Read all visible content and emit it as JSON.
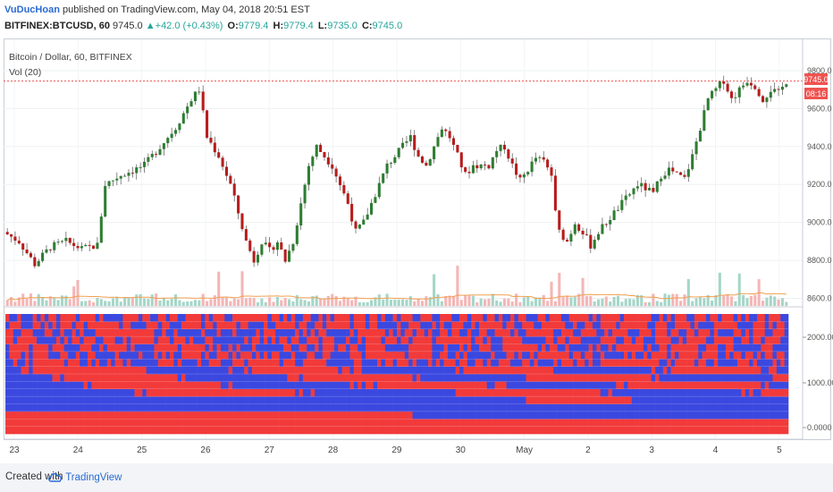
{
  "header": {
    "author": "VuDucHoan",
    "published": "published on TradingView.com, May 04, 2018 20:51 EST",
    "symbol": "BITFINEX:BTCUSD, 60",
    "last": "9745.0",
    "arrow": "▲",
    "change": "+42.0 (+0.43%)",
    "o_label": "O:",
    "o": "9779.4",
    "h_label": "H:",
    "h": "9779.4",
    "l_label": "L:",
    "l": "9735.0",
    "c_label": "C:",
    "c": "9745.0"
  },
  "legend": {
    "title": "Bitcoin / Dollar, 60, BITFINEX",
    "volume": "Vol (20)"
  },
  "price_tags": {
    "last": "9745.0",
    "countdown": "08:16"
  },
  "colors": {
    "up": "#26a69a",
    "down": "#ef5350",
    "candle_up": "#2e7d32",
    "candle_down": "#b71c1c",
    "red_band": "#f23a3a",
    "blue_band": "#3b48e0",
    "accent": "#2b6ad3"
  },
  "footer": {
    "created": "Created with",
    "brand": "TradingView"
  },
  "chart_data": [
    {
      "type": "candlestick",
      "title": "Bitcoin / Dollar, 60, BITFINEX",
      "ylim": [
        8560,
        9960
      ],
      "yticks": [
        8600,
        8800,
        9000,
        9200,
        9400,
        9600,
        9800
      ],
      "ytick_labels": [
        "8600.0",
        "8800.0",
        "9000.0",
        "9200.0",
        "9400.0",
        "9600.0",
        "9800.0"
      ],
      "last_price": 9745.0,
      "x_labels": [
        "23",
        "24",
        "25",
        "26",
        "27",
        "28",
        "29",
        "30",
        "May",
        "2",
        "3",
        "4",
        "5"
      ],
      "close_path": [
        [
          0,
          8950
        ],
        [
          4,
          8900
        ],
        [
          8,
          8780
        ],
        [
          12,
          8870
        ],
        [
          16,
          8900
        ],
        [
          20,
          8860
        ],
        [
          24,
          8880
        ],
        [
          26,
          9200
        ],
        [
          30,
          9250
        ],
        [
          36,
          9300
        ],
        [
          40,
          9400
        ],
        [
          44,
          9500
        ],
        [
          48,
          9650
        ],
        [
          50,
          9700
        ],
        [
          52,
          9450
        ],
        [
          55,
          9350
        ],
        [
          58,
          9200
        ],
        [
          60,
          9050
        ],
        [
          62,
          8900
        ],
        [
          64,
          8800
        ],
        [
          66,
          8900
        ],
        [
          68,
          8850
        ],
        [
          70,
          8900
        ],
        [
          72,
          8800
        ],
        [
          74,
          8900
        ],
        [
          76,
          9100
        ],
        [
          78,
          9300
        ],
        [
          80,
          9400
        ],
        [
          84,
          9300
        ],
        [
          86,
          9200
        ],
        [
          88,
          9100
        ],
        [
          90,
          8950
        ],
        [
          92,
          9000
        ],
        [
          94,
          9100
        ],
        [
          96,
          9200
        ],
        [
          98,
          9300
        ],
        [
          100,
          9350
        ],
        [
          102,
          9400
        ],
        [
          104,
          9450
        ],
        [
          106,
          9350
        ],
        [
          108,
          9300
        ],
        [
          110,
          9400
        ],
        [
          112,
          9500
        ],
        [
          114,
          9450
        ],
        [
          116,
          9350
        ],
        [
          118,
          9250
        ],
        [
          120,
          9300
        ],
        [
          124,
          9300
        ],
        [
          126,
          9380
        ],
        [
          128,
          9400
        ],
        [
          130,
          9300
        ],
        [
          132,
          9220
        ],
        [
          134,
          9280
        ],
        [
          136,
          9340
        ],
        [
          138,
          9320
        ],
        [
          140,
          9250
        ],
        [
          141,
          9050
        ],
        [
          142,
          8950
        ],
        [
          144,
          8900
        ],
        [
          146,
          9000
        ],
        [
          148,
          8950
        ],
        [
          150,
          8880
        ],
        [
          152,
          8950
        ],
        [
          154,
          9000
        ],
        [
          156,
          9050
        ],
        [
          158,
          9100
        ],
        [
          160,
          9150
        ],
        [
          162,
          9200
        ],
        [
          164,
          9180
        ],
        [
          166,
          9150
        ],
        [
          168,
          9250
        ],
        [
          170,
          9280
        ],
        [
          172,
          9250
        ],
        [
          174,
          9230
        ],
        [
          176,
          9350
        ],
        [
          178,
          9500
        ],
        [
          180,
          9650
        ],
        [
          182,
          9700
        ],
        [
          184,
          9750
        ],
        [
          186,
          9650
        ],
        [
          188,
          9700
        ],
        [
          190,
          9750
        ],
        [
          192,
          9720
        ],
        [
          194,
          9650
        ],
        [
          196,
          9700
        ],
        [
          198,
          9680
        ],
        [
          200,
          9745
        ]
      ]
    },
    {
      "type": "heatmap",
      "ytick_labels": [
        "0.0000",
        "1000.000",
        "2000.000"
      ],
      "rows": 16,
      "columns": 200,
      "palette": [
        "red",
        "blue"
      ]
    }
  ]
}
